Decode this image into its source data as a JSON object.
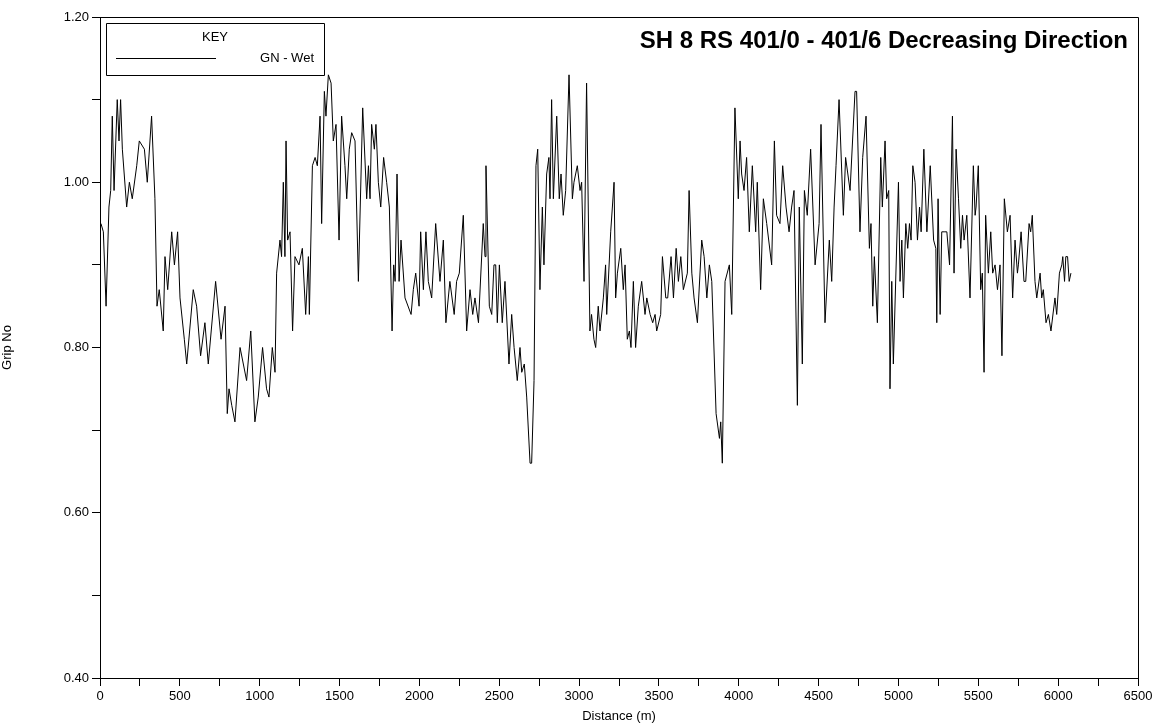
{
  "chart_data": {
    "type": "line",
    "title": "SH 8 RS 401/0 - 401/6 Decreasing Direction",
    "xlabel": "Distance (m)",
    "ylabel": "Grip No",
    "legend_title": "KEY",
    "legend": "top left",
    "grid": false,
    "marker": "none",
    "line_style": "solid",
    "xlim": [
      0,
      6500
    ],
    "ylim": [
      0.4,
      1.2
    ],
    "xticks": [
      0,
      {
        "value": 250,
        "label": null
      },
      500,
      {
        "value": 750,
        "label": null
      },
      1000,
      {
        "value": 1250,
        "label": null
      },
      1500,
      {
        "value": 1750,
        "label": null
      },
      2000,
      {
        "value": 2250,
        "label": null
      },
      2500,
      {
        "value": 2750,
        "label": null
      },
      3000,
      {
        "value": 3250,
        "label": null
      },
      3500,
      {
        "value": 3750,
        "label": null
      },
      4000,
      {
        "value": 4250,
        "label": null
      },
      4500,
      {
        "value": 4750,
        "label": null
      },
      5000,
      {
        "value": 5250,
        "label": null
      },
      5500,
      {
        "value": 5750,
        "label": null
      },
      6000,
      {
        "value": 6250,
        "label": null
      },
      6500
    ],
    "yticks": [
      {
        "value": 0.4,
        "label": "0.40"
      },
      {
        "value": 0.5,
        "label": null
      },
      {
        "value": 0.6,
        "label": "0.60"
      },
      {
        "value": 0.7,
        "label": null
      },
      {
        "value": 0.8,
        "label": "0.80"
      },
      {
        "value": 0.9,
        "label": null
      },
      {
        "value": 1.0,
        "label": "1.00"
      },
      {
        "value": 1.1,
        "label": null
      },
      {
        "value": 1.2,
        "label": "1.20"
      }
    ],
    "series": [
      {
        "name": "GN - Wet",
        "color": "#000000",
        "x": [
          6,
          21,
          38,
          56,
          67,
          77,
          88,
          108,
          119,
          129,
          140,
          167,
          184,
          202,
          230,
          246,
          278,
          296,
          323,
          344,
          357,
          371,
          396,
          407,
          424,
          449,
          466,
          486,
          501,
          528,
          543,
          584,
          605,
          630,
          657,
          678,
          724,
          758,
          783,
          797,
          808,
          825,
          845,
          877,
          918,
          944,
          970,
          991,
          1018,
          1043,
          1058,
          1079,
          1096,
          1106,
          1127,
          1137,
          1148,
          1158,
          1165,
          1175,
          1190,
          1206,
          1221,
          1246,
          1267,
          1288,
          1305,
          1311,
          1330,
          1347,
          1361,
          1378,
          1388,
          1405,
          1415,
          1430,
          1447,
          1461,
          1478,
          1497,
          1513,
          1534,
          1545,
          1561,
          1576,
          1597,
          1618,
          1645,
          1670,
          1681,
          1691,
          1701,
          1718,
          1728,
          1743,
          1758,
          1776,
          1795,
          1812,
          1829,
          1839,
          1848,
          1860,
          1873,
          1885,
          1910,
          1948,
          1962,
          1977,
          1998,
          2008,
          2025,
          2041,
          2056,
          2077,
          2102,
          2129,
          2150,
          2166,
          2191,
          2218,
          2233,
          2250,
          2275,
          2296,
          2317,
          2334,
          2348,
          2370,
          2400,
          2411,
          2417,
          2438,
          2453,
          2467,
          2478,
          2488,
          2501,
          2519,
          2536,
          2561,
          2578,
          2593,
          2613,
          2630,
          2641,
          2657,
          2672,
          2693,
          2703,
          2718,
          2730,
          2741,
          2755,
          2770,
          2780,
          2797,
          2811,
          2818,
          2828,
          2839,
          2860,
          2876,
          2887,
          2901,
          2916,
          2937,
          2958,
          2968,
          2989,
          3006,
          3016,
          3031,
          3047,
          3068,
          3078,
          3093,
          3104,
          3120,
          3131,
          3152,
          3166,
          3173,
          3198,
          3219,
          3229,
          3240,
          3261,
          3277,
          3288,
          3302,
          3315,
          3325,
          3340,
          3354,
          3371,
          3392,
          3413,
          3424,
          3445,
          3461,
          3476,
          3486,
          3511,
          3522,
          3543,
          3555,
          3576,
          3591,
          3608,
          3622,
          3637,
          3653,
          3678,
          3689,
          3706,
          3720,
          3741,
          3768,
          3783,
          3800,
          3816,
          3831,
          3858,
          3879,
          3887,
          3897,
          3914,
          3941,
          3956,
          3976,
          3997,
          4008,
          4018,
          4033,
          4049,
          4066,
          4085,
          4106,
          4116,
          4137,
          4154,
          4175,
          4206,
          4223,
          4237,
          4258,
          4275,
          4296,
          4315,
          4331,
          4346,
          4367,
          4379,
          4398,
          4411,
          4429,
          4450,
          4478,
          4503,
          4515,
          4540,
          4567,
          4582,
          4597,
          4609,
          4628,
          4655,
          4669,
          4697,
          4728,
          4738,
          4759,
          4776,
          4797,
          4818,
          4828,
          4839,
          4849,
          4868,
          4889,
          4899,
          4916,
          4926,
          4939,
          4947,
          4958,
          4968,
          5000,
          5010,
          5021,
          5031,
          5046,
          5058,
          5069,
          5079,
          5090,
          5104,
          5119,
          5132,
          5142,
          5159,
          5178,
          5199,
          5220,
          5234,
          5240,
          5248,
          5261,
          5271,
          5286,
          5303,
          5320,
          5338,
          5348,
          5361,
          5376,
          5390,
          5401,
          5411,
          5428,
          5448,
          5469,
          5480,
          5486,
          5500,
          5515,
          5525,
          5536,
          5546,
          5563,
          5578,
          5590,
          5605,
          5620,
          5636,
          5648,
          5663,
          5682,
          5699,
          5715,
          5730,
          5745,
          5751,
          5768,
          5786,
          5797,
          5818,
          5828,
          5838,
          5855,
          5866,
          5887,
          5897,
          5907,
          5924,
          5939,
          5955,
          5980,
          5991,
          6008,
          6023,
          6029,
          6040,
          6048,
          6059,
          6069,
          6080
        ],
        "values": [
          0.95,
          0.94,
          0.85,
          0.97,
          0.99,
          1.08,
          0.99,
          1.1,
          1.05,
          1.1,
          1.04,
          0.97,
          1.0,
          0.98,
          1.02,
          1.05,
          1.04,
          1.0,
          1.08,
          0.98,
          0.85,
          0.87,
          0.82,
          0.91,
          0.87,
          0.94,
          0.9,
          0.94,
          0.86,
          0.81,
          0.78,
          0.87,
          0.85,
          0.79,
          0.83,
          0.78,
          0.88,
          0.81,
          0.85,
          0.72,
          0.75,
          0.73,
          0.71,
          0.8,
          0.76,
          0.82,
          0.71,
          0.74,
          0.8,
          0.75,
          0.74,
          0.8,
          0.77,
          0.89,
          0.93,
          0.91,
          1.0,
          0.91,
          1.05,
          0.93,
          0.94,
          0.82,
          0.91,
          0.9,
          0.92,
          0.84,
          0.91,
          0.84,
          1.02,
          1.03,
          1.02,
          1.08,
          0.95,
          1.11,
          1.08,
          1.13,
          1.12,
          1.05,
          1.07,
          0.93,
          1.08,
          1.02,
          0.98,
          1.04,
          1.06,
          1.05,
          0.88,
          1.09,
          0.98,
          1.02,
          0.98,
          1.07,
          1.04,
          1.07,
          1.0,
          0.97,
          1.03,
          1.0,
          0.97,
          0.82,
          0.9,
          0.88,
          1.01,
          0.88,
          0.93,
          0.86,
          0.84,
          0.87,
          0.89,
          0.85,
          0.94,
          0.87,
          0.94,
          0.88,
          0.86,
          0.95,
          0.88,
          0.93,
          0.83,
          0.88,
          0.84,
          0.88,
          0.89,
          0.96,
          0.82,
          0.87,
          0.84,
          0.86,
          0.83,
          0.95,
          0.91,
          1.02,
          0.85,
          0.84,
          0.9,
          0.9,
          0.83,
          0.9,
          0.83,
          0.88,
          0.78,
          0.84,
          0.8,
          0.76,
          0.8,
          0.77,
          0.78,
          0.74,
          0.66,
          0.66,
          0.76,
          1.02,
          1.04,
          0.87,
          0.97,
          0.9,
          1.01,
          1.03,
          0.98,
          1.1,
          0.98,
          1.08,
          0.98,
          1.01,
          0.96,
          0.99,
          1.13,
          0.98,
          1.0,
          1.02,
          0.99,
          1.0,
          0.88,
          1.12,
          0.82,
          0.84,
          0.81,
          0.8,
          0.85,
          0.82,
          0.86,
          0.9,
          0.84,
          0.94,
          1.0,
          0.86,
          0.89,
          0.92,
          0.87,
          0.9,
          0.81,
          0.82,
          0.8,
          0.88,
          0.8,
          0.85,
          0.88,
          0.84,
          0.86,
          0.84,
          0.83,
          0.84,
          0.82,
          0.84,
          0.91,
          0.86,
          0.86,
          0.91,
          0.86,
          0.92,
          0.88,
          0.91,
          0.87,
          0.89,
          0.99,
          0.89,
          0.86,
          0.83,
          0.93,
          0.91,
          0.86,
          0.9,
          0.88,
          0.72,
          0.69,
          0.71,
          0.66,
          0.88,
          0.9,
          0.84,
          1.09,
          0.98,
          1.05,
          1.01,
          0.99,
          1.03,
          0.94,
          1.02,
          0.94,
          1.0,
          0.87,
          0.98,
          0.95,
          0.9,
          1.05,
          0.96,
          0.95,
          1.02,
          0.97,
          0.94,
          0.97,
          0.99,
          0.73,
          0.97,
          0.78,
          0.99,
          0.96,
          1.04,
          0.9,
          0.95,
          1.07,
          0.83,
          0.93,
          0.88,
          0.97,
          1.02,
          1.1,
          0.96,
          1.03,
          0.99,
          1.11,
          1.11,
          0.94,
          1.03,
          1.08,
          0.92,
          0.95,
          0.85,
          0.91,
          0.83,
          1.03,
          0.97,
          1.05,
          0.98,
          0.99,
          0.75,
          0.88,
          0.78,
          1.0,
          0.88,
          0.93,
          0.86,
          0.95,
          0.92,
          0.95,
          0.93,
          1.02,
          1.0,
          0.93,
          0.97,
          0.94,
          1.04,
          0.94,
          1.02,
          0.93,
          0.92,
          0.83,
          0.98,
          0.84,
          0.94,
          0.94,
          0.94,
          0.9,
          1.08,
          0.89,
          1.04,
          0.98,
          0.92,
          0.96,
          0.93,
          0.96,
          0.86,
          1.02,
          0.96,
          0.97,
          1.02,
          0.87,
          0.89,
          0.77,
          0.96,
          0.89,
          0.94,
          0.89,
          0.9,
          0.87,
          0.9,
          0.79,
          0.98,
          0.94,
          0.96,
          0.86,
          0.93,
          0.89,
          0.9,
          0.94,
          0.88,
          0.88,
          0.95,
          0.94,
          0.96,
          0.88,
          0.86,
          0.89,
          0.86,
          0.87,
          0.83,
          0.84,
          0.82,
          0.86,
          0.84,
          0.89,
          0.9,
          0.91,
          0.88,
          0.91,
          0.91,
          0.88,
          0.89
        ]
      }
    ]
  }
}
